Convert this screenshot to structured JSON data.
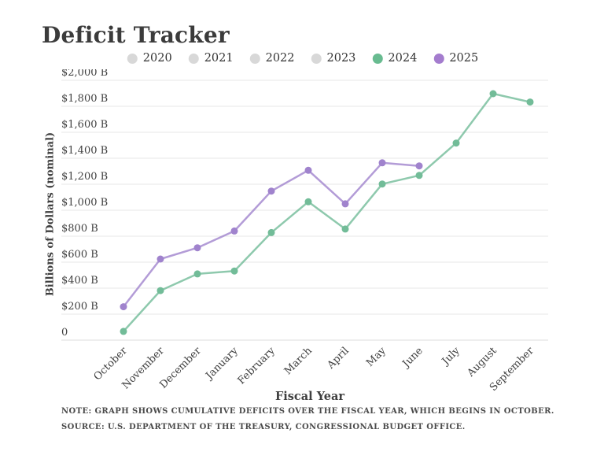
{
  "title": "Deficit Tracker",
  "legend": {
    "items": [
      {
        "label": "2020",
        "color": "#d8d8d8",
        "active": false
      },
      {
        "label": "2021",
        "color": "#d8d8d8",
        "active": false
      },
      {
        "label": "2022",
        "color": "#d8d8d8",
        "active": false
      },
      {
        "label": "2023",
        "color": "#d8d8d8",
        "active": false
      },
      {
        "label": "2024",
        "color": "#68bb90",
        "active": true
      },
      {
        "label": "2025",
        "color": "#a47cce",
        "active": true
      }
    ]
  },
  "chart_data": {
    "type": "line",
    "categories": [
      "October",
      "November",
      "December",
      "January",
      "February",
      "March",
      "April",
      "May",
      "June",
      "July",
      "August",
      "September"
    ],
    "series": [
      {
        "name": "2024",
        "color": "#72bc98",
        "values": [
          67,
          381,
          510,
          532,
          828,
          1065,
          855,
          1202,
          1268,
          1517,
          1897,
          1833
        ]
      },
      {
        "name": "2025",
        "color": "#a083cd",
        "values": [
          257,
          624,
          711,
          840,
          1147,
          1307,
          1049,
          1365,
          1341,
          null,
          null,
          null
        ]
      }
    ],
    "xlabel": "Fiscal Year",
    "ylabel": "Billions of Dollars (nominal)",
    "ylim": [
      0,
      2000
    ],
    "yticks": [
      {
        "value": 0,
        "label": "0"
      },
      {
        "value": 200,
        "label": "$200 B"
      },
      {
        "value": 400,
        "label": "$400 B"
      },
      {
        "value": 600,
        "label": "$600 B"
      },
      {
        "value": 800,
        "label": "$800 B"
      },
      {
        "value": 1000,
        "label": "$1,000 B"
      },
      {
        "value": 1200,
        "label": "$1,200 B"
      },
      {
        "value": 1400,
        "label": "$1,400 B"
      },
      {
        "value": 1600,
        "label": "$1,600 B"
      },
      {
        "value": 1800,
        "label": "$1,800 B"
      },
      {
        "value": 2000,
        "label": "$2,000 B"
      }
    ],
    "grid": "horizontal",
    "legend_position": "top"
  },
  "notes": {
    "note": "NOTE: GRAPH SHOWS CUMULATIVE DEFICITS OVER THE FISCAL YEAR, WHICH BEGINS IN OCTOBER.",
    "source": "SOURCE: U.S. DEPARTMENT OF THE TREASURY, CONGRESSIONAL BUDGET OFFICE."
  },
  "colors": {
    "gridline": "#e7e7e7",
    "axis_line": "#dcdcdc",
    "tick_text": "#3f3f3f",
    "title_text": "#3b3b3b"
  }
}
